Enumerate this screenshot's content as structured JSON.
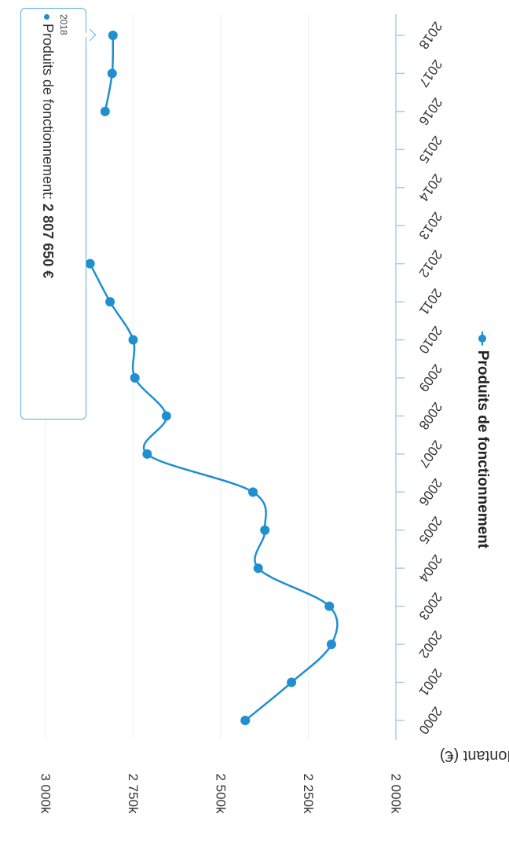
{
  "chart_data": {
    "type": "line",
    "xlabel": "",
    "ylabel": "Montant (€)",
    "ylim": [
      2000000,
      3000000
    ],
    "yticks": [
      {
        "value": 2000000,
        "label": "2 000k"
      },
      {
        "value": 2250000,
        "label": "2 250k"
      },
      {
        "value": 2500000,
        "label": "2 500k"
      },
      {
        "value": 2750000,
        "label": "2 750k"
      },
      {
        "value": 3000000,
        "label": "3 000k"
      }
    ],
    "categories": [
      "2000",
      "2001",
      "2002",
      "2003",
      "2004",
      "2005",
      "2006",
      "2007",
      "2008",
      "2009",
      "2010",
      "2011",
      "2012",
      "2013",
      "2014",
      "2015",
      "2016",
      "2017",
      "2018"
    ],
    "grid": true,
    "legend_position": "bottom",
    "series": [
      {
        "name": "Produits de fonctionnement",
        "color": "#1f8fd0",
        "values": [
          2430000,
          2298000,
          2184000,
          2190000,
          2393000,
          2374000,
          2408000,
          2710000,
          2655000,
          2745000,
          2750000,
          2816000,
          2873000,
          null,
          null,
          null,
          2830000,
          2810000,
          2807650
        ]
      }
    ],
    "tooltip": {
      "year": "2018",
      "series_label": "Produits de fonctionnement:",
      "value": "2 807 650 €"
    }
  }
}
